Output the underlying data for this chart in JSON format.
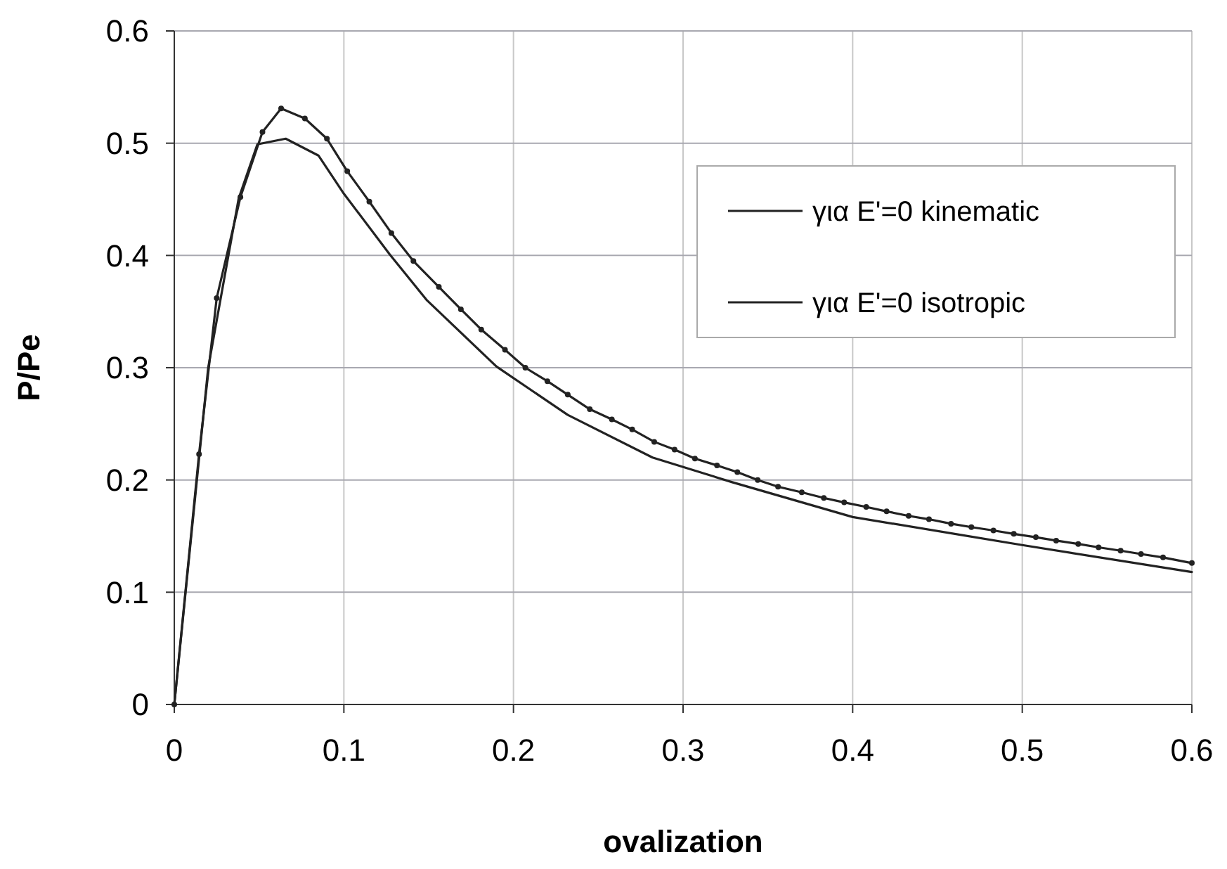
{
  "chart_data": {
    "type": "line",
    "xlabel": "ovalization",
    "ylabel": "P/Pe",
    "xlim": [
      0,
      0.6
    ],
    "ylim": [
      0,
      0.6
    ],
    "xticks": [
      0,
      0.1,
      0.2,
      0.3,
      0.4,
      0.5,
      0.6
    ],
    "yticks": [
      0,
      0.1,
      0.2,
      0.3,
      0.4,
      0.5,
      0.6
    ],
    "grid": true,
    "legend": "top right",
    "line_style": "solid",
    "series": [
      {
        "name": "για E'=0 kinematic",
        "color": "#222222",
        "marker": "circle",
        "x": [
          0,
          0.0146,
          0.025,
          0.039,
          0.052,
          0.063,
          0.077,
          0.09,
          0.102,
          0.115,
          0.128,
          0.141,
          0.156,
          0.169,
          0.181,
          0.195,
          0.207,
          0.22,
          0.232,
          0.245,
          0.258,
          0.27,
          0.283,
          0.295,
          0.307,
          0.32,
          0.332,
          0.344,
          0.356,
          0.37,
          0.383,
          0.395,
          0.408,
          0.42,
          0.433,
          0.445,
          0.458,
          0.47,
          0.483,
          0.495,
          0.508,
          0.52,
          0.533,
          0.545,
          0.558,
          0.57,
          0.583,
          0.6
        ],
        "values": [
          0,
          0.223,
          0.362,
          0.452,
          0.51,
          0.531,
          0.522,
          0.504,
          0.475,
          0.448,
          0.42,
          0.395,
          0.372,
          0.352,
          0.334,
          0.316,
          0.3,
          0.288,
          0.276,
          0.263,
          0.254,
          0.245,
          0.234,
          0.227,
          0.219,
          0.213,
          0.207,
          0.2,
          0.194,
          0.189,
          0.184,
          0.18,
          0.176,
          0.172,
          0.168,
          0.165,
          0.161,
          0.158,
          0.155,
          0.152,
          0.149,
          0.146,
          0.143,
          0.14,
          0.137,
          0.134,
          0.131,
          0.126
        ]
      },
      {
        "name": "για E'=0 isotropic",
        "color": "#222222",
        "marker": "none",
        "x": [
          0,
          0.02,
          0.038,
          0.049,
          0.0657,
          0.085,
          0.1,
          0.127,
          0.149,
          0.19,
          0.232,
          0.282,
          0.329,
          0.4,
          0.5,
          0.6
        ],
        "values": [
          0,
          0.3,
          0.451,
          0.499,
          0.504,
          0.489,
          0.455,
          0.401,
          0.36,
          0.301,
          0.258,
          0.22,
          0.198,
          0.167,
          0.142,
          0.118
        ]
      }
    ]
  }
}
